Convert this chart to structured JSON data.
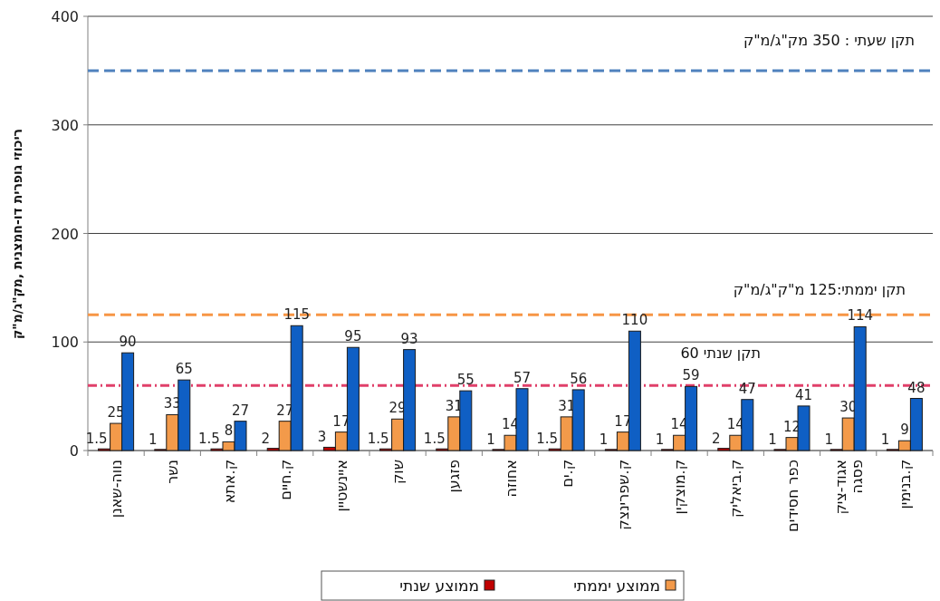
{
  "chart_data": {
    "type": "bar",
    "ylabel": "ריכוזי גופרית דו-חמצנית ,מק\"ג/מ\"ק",
    "categories": [
      "נווה-שאנן",
      "נשר",
      "ק.אתא",
      "ק.חיים",
      "איינשטיין",
      "שוק",
      "פזגען",
      "אחוזה",
      "ק.ים",
      "ק.שפרינצק",
      "ק.מוצקין",
      "ק.ביאליק",
      "כפר חסידים",
      "אגוד-ציק\nפסגה",
      "ק.בנימין"
    ],
    "series": [
      {
        "name": "ממוצע שנתי",
        "color": "#c00000",
        "values": [
          1.5,
          1,
          1.5,
          2,
          3,
          1.5,
          1.5,
          1,
          1.5,
          1,
          1,
          2,
          1,
          1,
          1
        ]
      },
      {
        "name": "ממוצע יממתי",
        "color": "#f39a4a",
        "values": [
          25,
          33,
          8,
          27,
          17,
          29,
          31,
          14,
          31,
          17,
          14,
          14,
          12,
          30,
          9
        ]
      },
      {
        "color": "#0f5fc4",
        "values": [
          90,
          65,
          27,
          115,
          95,
          93,
          55,
          57,
          56,
          110,
          59,
          47,
          41,
          114,
          48
        ]
      }
    ],
    "ylim": [
      0,
      400
    ],
    "yticks": [
      0,
      100,
      200,
      300,
      400
    ],
    "grid": "y",
    "legend": "bottom",
    "data_labels": true,
    "ref_lines": [
      {
        "axis": "y",
        "value": 350,
        "label": "תקן שעתי : 350 מק\"ג/מ\"ק",
        "color": "#4f81bd",
        "line_style": "dashed"
      },
      {
        "axis": "y",
        "value": 125,
        "label": "תקן יממתי:125 מ\"ק\"ג/מ\"ק",
        "color": "#f79646",
        "line_style": "dashed"
      },
      {
        "axis": "y",
        "value": 60,
        "label": "תקן שנתי 60",
        "color": "#e0406a",
        "line_style": "dashdot"
      }
    ]
  }
}
